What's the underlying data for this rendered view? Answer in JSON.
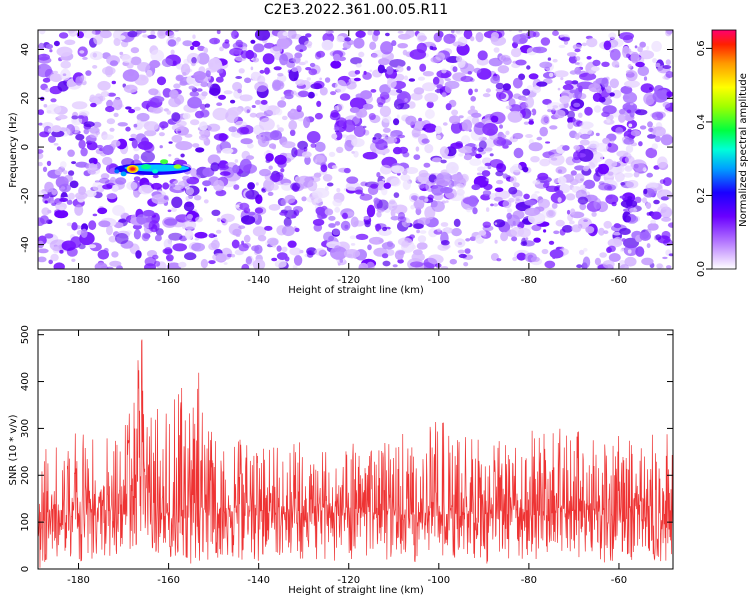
{
  "figure": {
    "title": "C2E3.2022.361.00.05.R11"
  },
  "chart_data": [
    {
      "type": "heatmap",
      "xlabel": "Height of straight line (km)",
      "ylabel": "Frequency (Hz)",
      "xlim": [
        -189,
        -48
      ],
      "ylim": [
        -50,
        48
      ],
      "x_ticks": [
        -180,
        -160,
        -140,
        -120,
        -100,
        -80,
        -60
      ],
      "y_ticks": [
        -40,
        -20,
        0,
        20,
        40
      ],
      "colorbar": {
        "label": "Normalized spectral amplitude",
        "range": [
          0.0,
          0.65
        ],
        "ticks": [
          "0.0",
          "0.2",
          "0.4",
          "0.6"
        ],
        "tick_values": [
          0.0,
          0.2,
          0.4,
          0.6
        ]
      },
      "background": "scattered low-amplitude noise blobs (0.0–0.15) across the whole field",
      "features": [
        {
          "label": "signal streak",
          "x_range": [
            -172,
            -155
          ],
          "frequency_center_hz": -9,
          "peak_amplitude": 0.58,
          "peak_x": -168
        }
      ]
    },
    {
      "type": "line",
      "xlabel": "Height of straight line (km)",
      "ylabel": "SNR (10 * v/v)",
      "xlim": [
        -189,
        -48
      ],
      "ylim": [
        0,
        510
      ],
      "x_ticks": [
        -180,
        -160,
        -140,
        -120,
        -100,
        -80,
        -60
      ],
      "y_ticks": [
        0,
        100,
        200,
        300,
        400,
        500
      ],
      "color": "#ee3333",
      "x": [
        -189,
        -185,
        -180,
        -175,
        -172,
        -170,
        -168,
        -166.5,
        -165.5,
        -164.5,
        -163,
        -161,
        -159,
        -157,
        -155,
        -153,
        -150,
        -145,
        -140,
        -135,
        -130,
        -125,
        -120,
        -115,
        -110,
        -105,
        -100,
        -95,
        -90,
        -85,
        -80,
        -75,
        -70,
        -65,
        -60,
        -55,
        -50,
        -48
      ],
      "upper": [
        270,
        280,
        300,
        270,
        290,
        310,
        360,
        510,
        480,
        360,
        330,
        380,
        405,
        400,
        370,
        430,
        300,
        280,
        280,
        260,
        280,
        270,
        280,
        260,
        300,
        270,
        330,
        300,
        300,
        270,
        300,
        310,
        300,
        280,
        300,
        280,
        300,
        310
      ],
      "lower": [
        0,
        20,
        15,
        20,
        20,
        20,
        40,
        60,
        50,
        20,
        15,
        10,
        10,
        10,
        5,
        15,
        15,
        20,
        15,
        20,
        20,
        15,
        20,
        15,
        20,
        10,
        20,
        20,
        10,
        15,
        20,
        10,
        20,
        15,
        10,
        20,
        15,
        20
      ],
      "typical": [
        130,
        125,
        130,
        125,
        130,
        140,
        170,
        230,
        200,
        150,
        130,
        125,
        125,
        120,
        125,
        130,
        125,
        120,
        125,
        120,
        120,
        125,
        120,
        120,
        125,
        120,
        120,
        125,
        120,
        125,
        125,
        120,
        125,
        125,
        120,
        125,
        125,
        125
      ]
    }
  ]
}
